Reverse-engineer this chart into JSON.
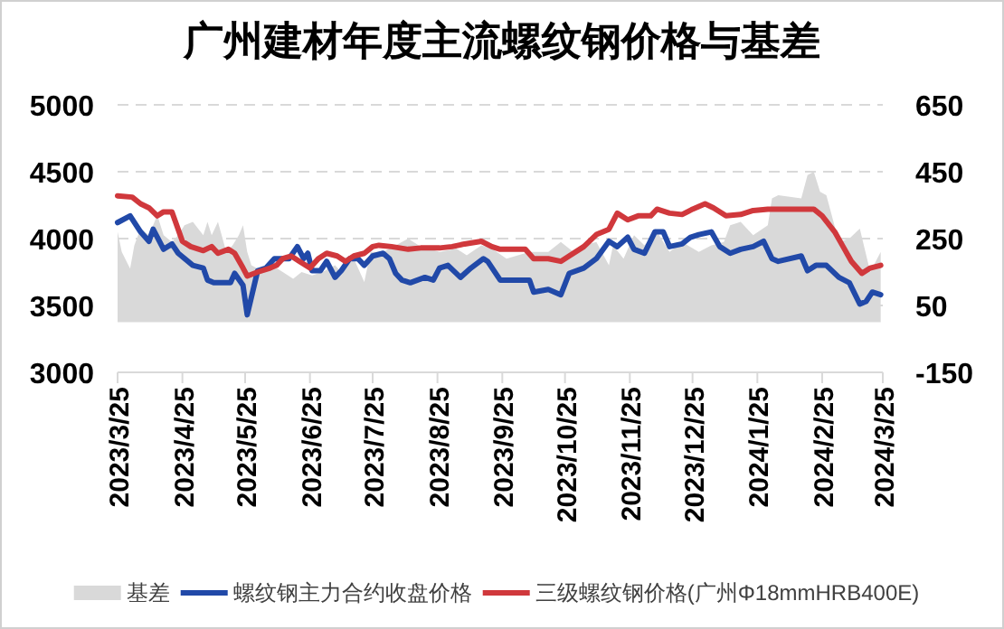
{
  "chart_data": {
    "type": "line",
    "title": "广州建材年度主流螺纹钢价格与基差",
    "xlim": [
      "2023-03-25",
      "2024-03-25"
    ],
    "xticks": [
      {
        "value": "2023-03-25",
        "label": "2023/3/25"
      },
      {
        "value": "2023-04-25",
        "label": "2023/4/25"
      },
      {
        "value": "2023-05-25",
        "label": "2023/5/25"
      },
      {
        "value": "2023-06-25",
        "label": "2023/6/25"
      },
      {
        "value": "2023-07-25",
        "label": "2023/7/25"
      },
      {
        "value": "2023-08-25",
        "label": "2023/8/25"
      },
      {
        "value": "2023-09-25",
        "label": "2023/9/25"
      },
      {
        "value": "2023-10-25",
        "label": "2023/10/25"
      },
      {
        "value": "2023-11-25",
        "label": "2023/11/25"
      },
      {
        "value": "2023-12-25",
        "label": "2023/12/25"
      },
      {
        "value": "2024-01-25",
        "label": "2024/1/25"
      },
      {
        "value": "2024-02-25",
        "label": "2024/2/25"
      },
      {
        "value": "2024-03-25",
        "label": "2024/3/25"
      }
    ],
    "ylim": [
      3000,
      5000
    ],
    "yticks": [
      3000,
      3500,
      4000,
      4500,
      5000
    ],
    "y2lim": [
      -150,
      650
    ],
    "y2ticks": [
      -150,
      50,
      250,
      450,
      650
    ],
    "grid": "y",
    "legend": "bottom",
    "series": [
      {
        "name": "基差",
        "type": "area",
        "axis": "y2",
        "color": "#d9d9d9",
        "x": [
          "2023-03-25",
          "2023-03-27",
          "2023-03-31",
          "2023-04-02",
          "2023-04-05",
          "2023-04-09",
          "2023-04-13",
          "2023-04-16",
          "2023-04-20",
          "2023-04-23",
          "2023-04-26",
          "2023-04-30",
          "2023-05-05",
          "2023-05-07",
          "2023-05-09",
          "2023-05-12",
          "2023-05-16",
          "2023-05-19",
          "2023-05-22",
          "2023-05-24",
          "2023-05-26",
          "2023-05-28",
          "2023-06-03",
          "2023-06-07",
          "2023-06-12",
          "2023-06-17",
          "2023-06-21",
          "2023-06-26",
          "2023-07-01",
          "2023-07-07",
          "2023-07-10",
          "2023-07-16",
          "2023-07-21",
          "2023-07-24",
          "2023-07-30",
          "2023-08-05",
          "2023-08-11",
          "2023-08-16",
          "2023-08-26",
          "2023-09-03",
          "2023-09-08",
          "2023-09-15",
          "2023-09-20",
          "2023-09-27",
          "2023-10-08",
          "2023-10-17",
          "2023-10-23",
          "2023-10-29",
          "2023-11-03",
          "2023-11-09",
          "2023-11-15",
          "2023-11-17",
          "2023-11-22",
          "2023-11-27",
          "2023-12-02",
          "2023-12-08",
          "2023-12-14",
          "2023-12-20",
          "2023-12-28",
          "2024-01-03",
          "2024-01-09",
          "2024-01-12",
          "2024-01-17",
          "2024-01-23",
          "2024-01-30",
          "2024-02-01",
          "2024-02-04",
          "2024-02-15",
          "2024-02-18",
          "2024-02-21",
          "2024-02-24",
          "2024-02-27",
          "2024-03-04",
          "2024-03-09",
          "2024-03-14",
          "2024-03-19",
          "2024-03-24"
        ],
        "values": [
          270,
          210,
          160,
          230,
          280,
          260,
          320,
          260,
          240,
          260,
          290,
          300,
          260,
          300,
          260,
          300,
          210,
          230,
          260,
          290,
          210,
          170,
          150,
          170,
          150,
          130,
          150,
          140,
          150,
          170,
          150,
          190,
          120,
          210,
          210,
          230,
          250,
          230,
          210,
          220,
          200,
          230,
          220,
          190,
          210,
          210,
          240,
          210,
          230,
          240,
          170,
          230,
          190,
          260,
          230,
          270,
          210,
          240,
          210,
          230,
          240,
          290,
          300,
          260,
          290,
          370,
          380,
          370,
          440,
          450,
          390,
          380,
          240,
          250,
          280,
          150,
          210
        ]
      },
      {
        "name": "螺纹钢主力合约收盘价格",
        "color": "#2149a8",
        "x": [
          "2023-03-25",
          "2023-03-31",
          "2023-04-05",
          "2023-04-09",
          "2023-04-11",
          "2023-04-14",
          "2023-04-16",
          "2023-04-20",
          "2023-04-23",
          "2023-04-30",
          "2023-05-05",
          "2023-05-07",
          "2023-05-10",
          "2023-05-14",
          "2023-05-18",
          "2023-05-20",
          "2023-05-24",
          "2023-05-26",
          "2023-05-31",
          "2023-06-04",
          "2023-06-08",
          "2023-06-12",
          "2023-06-15",
          "2023-06-19",
          "2023-06-22",
          "2023-06-24",
          "2023-06-26",
          "2023-06-30",
          "2023-07-03",
          "2023-07-07",
          "2023-07-10",
          "2023-07-14",
          "2023-07-18",
          "2023-07-21",
          "2023-07-25",
          "2023-07-30",
          "2023-08-02",
          "2023-08-05",
          "2023-08-08",
          "2023-08-12",
          "2023-08-19",
          "2023-08-23",
          "2023-08-26",
          "2023-08-30",
          "2023-09-05",
          "2023-09-10",
          "2023-09-16",
          "2023-09-18",
          "2023-09-24",
          "2023-10-08",
          "2023-10-10",
          "2023-10-17",
          "2023-10-23",
          "2023-10-27",
          "2023-11-03",
          "2023-11-09",
          "2023-11-15",
          "2023-11-19",
          "2023-11-24",
          "2023-11-27",
          "2023-12-02",
          "2023-12-07",
          "2023-12-11",
          "2023-12-14",
          "2023-12-20",
          "2023-12-24",
          "2023-12-28",
          "2024-01-03",
          "2024-01-07",
          "2024-01-12",
          "2024-01-17",
          "2024-01-23",
          "2024-01-28",
          "2024-02-01",
          "2024-02-04",
          "2024-02-15",
          "2024-02-18",
          "2024-02-22",
          "2024-02-27",
          "2024-03-04",
          "2024-03-09",
          "2024-03-14",
          "2024-03-17",
          "2024-03-20",
          "2024-03-24"
        ],
        "values": [
          4120,
          4170,
          4050,
          3980,
          4070,
          3980,
          3920,
          3960,
          3890,
          3800,
          3780,
          3690,
          3670,
          3670,
          3670,
          3740,
          3650,
          3430,
          3760,
          3780,
          3850,
          3850,
          3850,
          3940,
          3850,
          3890,
          3760,
          3760,
          3830,
          3710,
          3760,
          3850,
          3850,
          3800,
          3870,
          3890,
          3850,
          3740,
          3690,
          3670,
          3710,
          3690,
          3780,
          3800,
          3710,
          3780,
          3850,
          3830,
          3690,
          3690,
          3600,
          3620,
          3580,
          3740,
          3780,
          3850,
          3980,
          3940,
          4010,
          3920,
          3890,
          4050,
          4050,
          3940,
          3960,
          4010,
          4030,
          4050,
          3940,
          3890,
          3920,
          3940,
          3980,
          3850,
          3830,
          3870,
          3760,
          3800,
          3800,
          3710,
          3670,
          3510,
          3530,
          3600,
          3580
        ]
      },
      {
        "name": "三级螺纹钢价格(广州Φ18mmHRB400E)",
        "color": "#d0383c",
        "x": [
          "2023-03-25",
          "2023-04-01",
          "2023-04-05",
          "2023-04-09",
          "2023-04-13",
          "2023-04-16",
          "2023-04-20",
          "2023-04-25",
          "2023-04-29",
          "2023-05-05",
          "2023-05-09",
          "2023-05-12",
          "2023-05-17",
          "2023-05-20",
          "2023-05-24",
          "2023-05-26",
          "2023-05-31",
          "2023-06-06",
          "2023-06-09",
          "2023-06-12",
          "2023-06-16",
          "2023-06-20",
          "2023-06-25",
          "2023-06-29",
          "2023-07-03",
          "2023-07-08",
          "2023-07-12",
          "2023-07-16",
          "2023-07-21",
          "2023-07-25",
          "2023-07-28",
          "2023-08-03",
          "2023-08-11",
          "2023-08-17",
          "2023-08-26",
          "2023-09-01",
          "2023-09-07",
          "2023-09-15",
          "2023-09-20",
          "2023-09-24",
          "2023-10-06",
          "2023-10-10",
          "2023-10-17",
          "2023-10-23",
          "2023-10-27",
          "2023-11-03",
          "2023-11-09",
          "2023-11-15",
          "2023-11-19",
          "2023-11-24",
          "2023-11-29",
          "2023-12-05",
          "2023-12-08",
          "2023-12-14",
          "2023-12-20",
          "2023-12-25",
          "2023-12-31",
          "2024-01-04",
          "2024-01-10",
          "2024-01-17",
          "2024-01-23",
          "2024-01-30",
          "2024-02-04",
          "2024-02-09",
          "2024-02-21",
          "2024-02-25",
          "2024-03-02",
          "2024-03-06",
          "2024-03-10",
          "2024-03-15",
          "2024-03-19",
          "2024-03-24"
        ],
        "values": [
          4320,
          4310,
          4260,
          4230,
          4170,
          4200,
          4200,
          3980,
          3940,
          3910,
          3940,
          3890,
          3920,
          3890,
          3780,
          3720,
          3750,
          3780,
          3800,
          3850,
          3870,
          3830,
          3780,
          3850,
          3890,
          3870,
          3830,
          3870,
          3890,
          3940,
          3950,
          3940,
          3920,
          3930,
          3930,
          3940,
          3960,
          3980,
          3940,
          3920,
          3920,
          3850,
          3850,
          3830,
          3870,
          3940,
          4030,
          4070,
          4190,
          4140,
          4170,
          4170,
          4220,
          4190,
          4180,
          4220,
          4260,
          4230,
          4170,
          4180,
          4210,
          4220,
          4220,
          4220,
          4220,
          4170,
          4050,
          3940,
          3830,
          3740,
          3780,
          3800
        ]
      }
    ]
  }
}
